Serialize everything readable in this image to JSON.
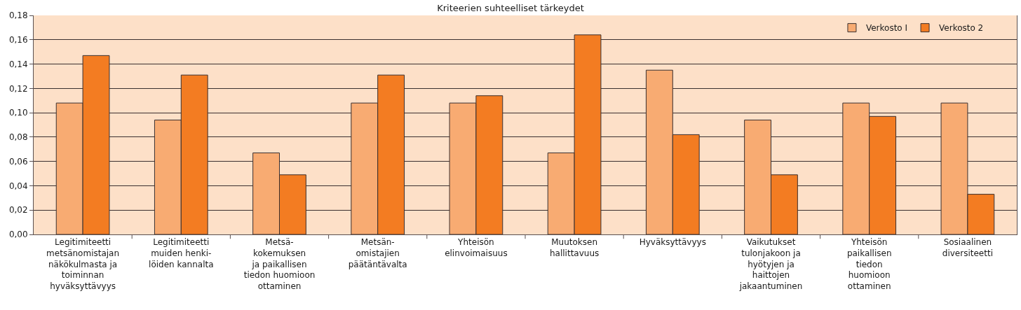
{
  "chart_data": {
    "type": "bar",
    "title": "Kriteerien suhteelliset tärkeydet",
    "categories": [
      "Legitimiteetti\nmetsänomistajan\nnäkökulmasta ja\ntoiminnan\nhyväksyttävyys",
      "Legitimiteetti\nmuiden henki-\nlöiden kannalta",
      "Metsä-\nkokemuksen\nja paikallisen\ntiedon huomioon\nottaminen",
      "Metsän-\nomistajien\npäätäntävalta",
      "Yhteisön\nelinvoimaisuus",
      "Muutoksen\nhallittavuus",
      "Hyväksyttävyys",
      "Vaikutukset\ntulonjakoon ja\nhyötyjen ja\nhaittojen\njakaantuminen",
      "Yhteisön\npaikallisen\ntiedon\nhuomioon\nottaminen",
      "Sosiaalinen\ndiversiteetti"
    ],
    "series": [
      {
        "name": "Verkosto I",
        "color": "#f8ab72",
        "values": [
          0.108,
          0.094,
          0.067,
          0.108,
          0.108,
          0.067,
          0.135,
          0.094,
          0.108,
          0.108
        ]
      },
      {
        "name": "Verkosto 2",
        "color": "#f37c22",
        "values": [
          0.147,
          0.131,
          0.049,
          0.131,
          0.114,
          0.164,
          0.082,
          0.049,
          0.097,
          0.033
        ]
      }
    ],
    "ylim": [
      0,
      0.18
    ],
    "yticks": [
      {
        "value": 0,
        "label": "0,00"
      },
      {
        "value": 0.02,
        "label": "0,02"
      },
      {
        "value": 0.04,
        "label": "0,04"
      },
      {
        "value": 0.06,
        "label": "0,06"
      },
      {
        "value": 0.08,
        "label": "0,08"
      },
      {
        "value": 0.1,
        "label": "0,10"
      },
      {
        "value": 0.12,
        "label": "0,12"
      },
      {
        "value": 0.14,
        "label": "0,14"
      },
      {
        "value": 0.16,
        "label": "0,16"
      },
      {
        "value": 0.18,
        "label": "0,18"
      }
    ],
    "grid": "y",
    "legend": "top right"
  }
}
